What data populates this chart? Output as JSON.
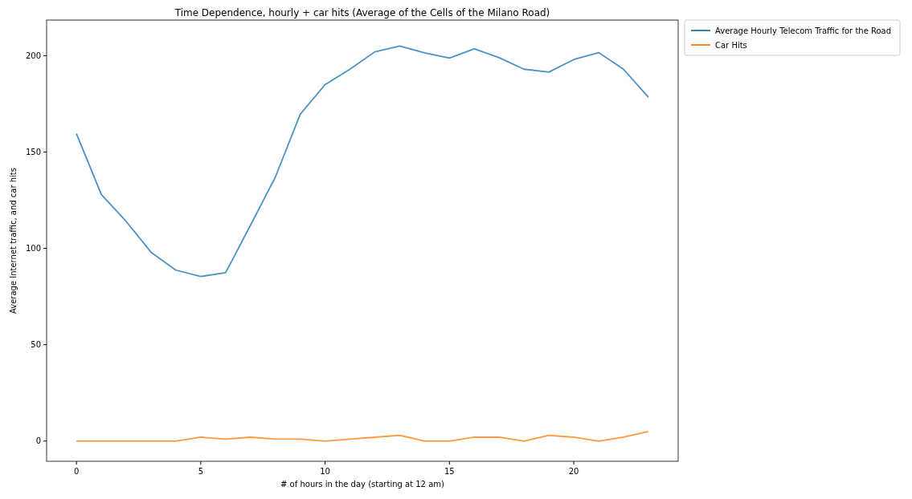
{
  "chart_data": {
    "type": "line",
    "title": "Time Dependence, hourly + car hits (Average of the Cells of the Milano Road)",
    "xlabel": "# of hours in the day (starting at 12 am)",
    "ylabel": "Average Internet traffic, and car hits",
    "x": [
      0,
      1,
      2,
      3,
      4,
      5,
      6,
      7,
      8,
      9,
      10,
      11,
      12,
      13,
      14,
      15,
      16,
      17,
      18,
      19,
      20,
      21,
      22,
      23
    ],
    "series": [
      {
        "name": "Average Hourly Telecom Traffic for the Road",
        "color": "#1f77b4",
        "values": [
          159.5,
          128,
          114,
          98,
          88.7,
          85.4,
          87.4,
          112,
          137,
          169.6,
          185,
          193,
          202,
          205,
          201.5,
          198.8,
          203.6,
          199,
          193,
          191.5,
          198,
          201.6,
          193,
          178.5
        ]
      },
      {
        "name": "Car Hits",
        "color": "#ff7f0e",
        "values": [
          0,
          0,
          0,
          0,
          0,
          2,
          1,
          2,
          1,
          1,
          0,
          1,
          2,
          3,
          0,
          0,
          2,
          2,
          0,
          3,
          2,
          0,
          2,
          5
        ]
      }
    ],
    "xlim": [
      -1.2,
      24.2
    ],
    "ylim": [
      -10.5,
      218.5
    ],
    "xticks": [
      0,
      5,
      10,
      15,
      20
    ],
    "yticks": [
      0,
      50,
      100,
      150,
      200
    ],
    "grid": false,
    "legend": "top right",
    "line_style": "solid",
    "marker": "none"
  }
}
